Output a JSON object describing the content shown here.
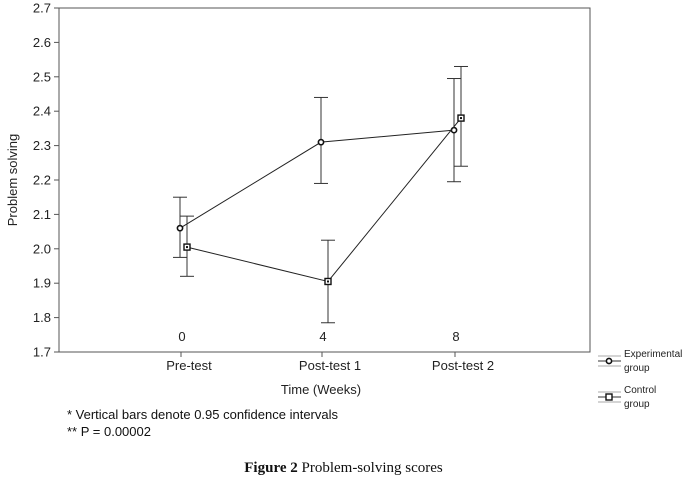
{
  "chart_data": {
    "type": "line",
    "ylabel": "Problem solving",
    "xlabel": "Time (Weeks)",
    "ylim": [
      1.7,
      2.7
    ],
    "yticks": [
      "1.7",
      "1.8",
      "1.9",
      "2.0",
      "2.1",
      "2.2",
      "2.3",
      "2.4",
      "2.5",
      "2.6",
      "2.7"
    ],
    "categories": [
      "Pre-test",
      "Post-test 1",
      "Post-test 2"
    ],
    "week_labels": [
      "0",
      "4",
      "8"
    ],
    "grid": false,
    "legend_position": "right",
    "series": [
      {
        "name": "Experimental group",
        "marker": "circle",
        "values": [
          2.06,
          2.31,
          2.345
        ],
        "ci_low": [
          1.975,
          2.19,
          2.195
        ],
        "ci_high": [
          2.15,
          2.44,
          2.495
        ]
      },
      {
        "name": "Control group",
        "marker": "square",
        "values": [
          2.005,
          1.905,
          2.38
        ],
        "ci_low": [
          1.92,
          1.785,
          2.24
        ],
        "ci_high": [
          2.095,
          2.025,
          2.53
        ]
      }
    ],
    "legend": [
      {
        "line1": "Experimental",
        "line2": "group"
      },
      {
        "line1": "Control",
        "line2": "group"
      }
    ]
  },
  "footnotes": {
    "line1": "* Vertical bars denote 0.95 confidence intervals",
    "line2": "** P = 0.00002"
  },
  "caption": {
    "label": "Figure 2",
    "text": "Problem-solving scores"
  }
}
